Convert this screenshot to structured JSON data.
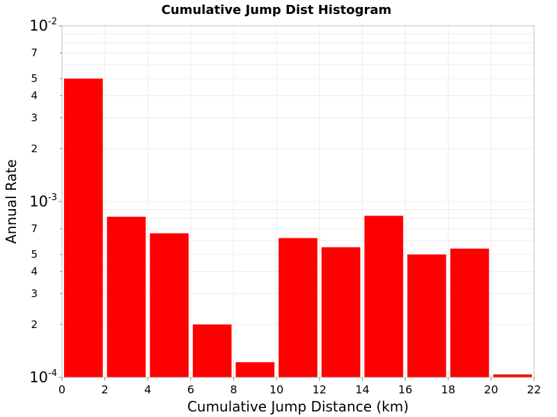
{
  "chart_data": {
    "type": "bar",
    "title": "Cumulative Jump Dist Histogram",
    "xlabel": "Cumulative Jump Distance (km)",
    "ylabel": "Annual Rate",
    "xlim": [
      0,
      22
    ],
    "ylim": [
      0.0001,
      0.01
    ],
    "y_scale": "log",
    "grid": true,
    "bar_color": "#ff0000",
    "x_ticks": [
      "0",
      "2",
      "4",
      "6",
      "8",
      "10",
      "12",
      "14",
      "16",
      "18",
      "20",
      "22"
    ],
    "y_major_ticks": [
      {
        "value": 0.0001,
        "base": "10",
        "exp": "-4"
      },
      {
        "value": 0.001,
        "base": "10",
        "exp": "-3"
      },
      {
        "value": 0.01,
        "base": "10",
        "exp": "-2"
      }
    ],
    "y_minor_tick_labels": [
      {
        "value": 0.0002,
        "label": "2"
      },
      {
        "value": 0.0003,
        "label": "3"
      },
      {
        "value": 0.0004,
        "label": "4"
      },
      {
        "value": 0.0005,
        "label": "5"
      },
      {
        "value": 0.0007,
        "label": "7"
      },
      {
        "value": 0.002,
        "label": "2"
      },
      {
        "value": 0.003,
        "label": "3"
      },
      {
        "value": 0.004,
        "label": "4"
      },
      {
        "value": 0.005,
        "label": "5"
      },
      {
        "value": 0.007,
        "label": "7"
      }
    ],
    "bins": [
      {
        "x0": 0,
        "x1": 2,
        "value": 0.005
      },
      {
        "x0": 2,
        "x1": 4,
        "value": 0.00082
      },
      {
        "x0": 4,
        "x1": 6,
        "value": 0.00066
      },
      {
        "x0": 6,
        "x1": 8,
        "value": 0.0002
      },
      {
        "x0": 8,
        "x1": 10,
        "value": 0.000122
      },
      {
        "x0": 10,
        "x1": 12,
        "value": 0.00062
      },
      {
        "x0": 12,
        "x1": 14,
        "value": 0.00055
      },
      {
        "x0": 14,
        "x1": 16,
        "value": 0.00083
      },
      {
        "x0": 16,
        "x1": 18,
        "value": 0.0005
      },
      {
        "x0": 18,
        "x1": 20,
        "value": 0.00054
      },
      {
        "x0": 20,
        "x1": 22,
        "value": 0.000104
      }
    ]
  }
}
